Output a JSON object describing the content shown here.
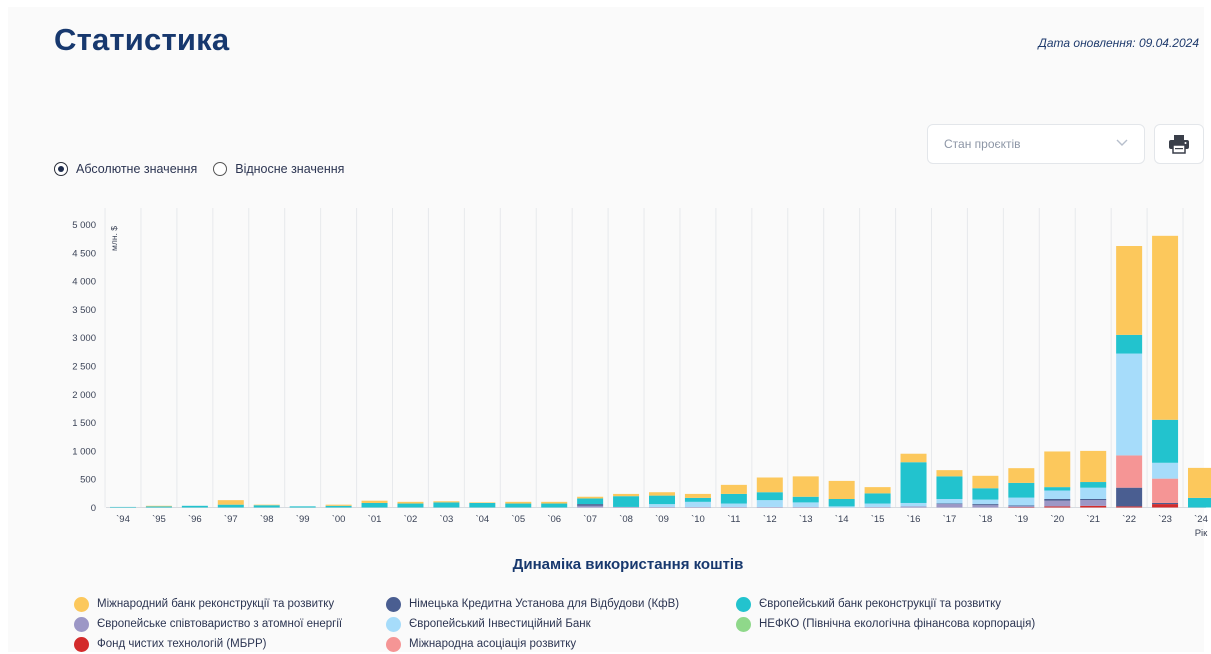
{
  "header": {
    "title": "Статистика",
    "updated": "Дата оновлення: 09.04.2024"
  },
  "view_mode": {
    "options": [
      {
        "label": "Абсолютне значення",
        "checked": true
      },
      {
        "label": "Відносне значення",
        "checked": false
      }
    ]
  },
  "filter": {
    "select_label": "Стан проєктів"
  },
  "toolbar": {
    "print_icon": "printer-icon"
  },
  "chart_data": {
    "type": "bar",
    "stacked": true,
    "title": "Динаміка використання коштів",
    "ylabel": "млн. $",
    "xlabel": "Рік",
    "ylim": [
      0,
      5000
    ],
    "yticks": [
      0,
      500,
      1000,
      1500,
      2000,
      2500,
      3000,
      3500,
      4000,
      4500,
      5000
    ],
    "ytick_labels": [
      "0",
      "500",
      "1 000",
      "1 500",
      "2 000",
      "2 500",
      "3 000",
      "3 500",
      "4 000",
      "4 500",
      "5 000"
    ],
    "grid": "vertical",
    "legend_position": "bottom",
    "categories": [
      "`94",
      "`95",
      "`96",
      "`97",
      "`98",
      "`99",
      "`00",
      "`01",
      "`02",
      "`03",
      "`04",
      "`05",
      "`06",
      "`07",
      "`08",
      "`09",
      "`10",
      "`11",
      "`12",
      "`13",
      "`14",
      "`15",
      "`16",
      "`17",
      "`18",
      "`19",
      "`20",
      "`21",
      "`22",
      "`23",
      "`24"
    ],
    "series": [
      {
        "name": "Фонд чистих технологій (МБРР)",
        "color": "#d32b2b",
        "values": [
          0,
          0,
          0,
          0,
          0,
          0,
          0,
          0,
          0,
          0,
          0,
          0,
          0,
          0,
          0,
          0,
          0,
          0,
          0,
          0,
          0,
          0,
          0,
          0,
          0,
          5,
          20,
          30,
          20,
          60,
          0
        ]
      },
      {
        "name": "Європейське співтовариство з атомної енергії",
        "color": "#9c97c6",
        "values": [
          0,
          0,
          0,
          0,
          0,
          0,
          0,
          0,
          0,
          0,
          0,
          0,
          0,
          30,
          10,
          10,
          10,
          10,
          10,
          10,
          0,
          10,
          20,
          60,
          40,
          20,
          100,
          100,
          0,
          0,
          0
        ]
      },
      {
        "name": "Німецька Кредитна Установа для Відбудови (КфВ)",
        "color": "#4a5e91",
        "values": [
          0,
          0,
          0,
          0,
          0,
          0,
          0,
          0,
          0,
          0,
          0,
          0,
          0,
          30,
          0,
          0,
          0,
          0,
          0,
          0,
          0,
          0,
          0,
          10,
          20,
          10,
          30,
          20,
          330,
          20,
          0
        ]
      },
      {
        "name": "Міжнародна асоціація розвитку",
        "color": "#f59595",
        "values": [
          0,
          0,
          0,
          0,
          0,
          0,
          0,
          0,
          0,
          0,
          0,
          0,
          0,
          0,
          0,
          0,
          0,
          0,
          0,
          0,
          0,
          0,
          0,
          0,
          0,
          0,
          0,
          0,
          570,
          430,
          0
        ]
      },
      {
        "name": "Європейський Інвестиційний Банк",
        "color": "#a6dcfa",
        "values": [
          0,
          0,
          0,
          0,
          0,
          0,
          0,
          0,
          0,
          0,
          0,
          0,
          0,
          0,
          0,
          50,
          90,
          60,
          120,
          80,
          20,
          60,
          60,
          80,
          80,
          140,
          150,
          200,
          1800,
          280,
          0
        ]
      },
      {
        "name": "НЕФКО (Північна екологічна фінансова корпорація)",
        "color": "#8fd88a",
        "values": [
          0,
          0,
          0,
          0,
          0,
          0,
          0,
          0,
          0,
          0,
          0,
          0,
          0,
          0,
          0,
          0,
          0,
          0,
          0,
          0,
          0,
          0,
          0,
          0,
          0,
          0,
          0,
          0,
          0,
          0,
          0
        ]
      },
      {
        "name": "Європейський банк реконструкції та розвитку",
        "color": "#22c3ce",
        "values": [
          10,
          20,
          30,
          50,
          40,
          20,
          30,
          80,
          70,
          90,
          80,
          70,
          70,
          100,
          190,
          150,
          70,
          170,
          140,
          100,
          130,
          180,
          720,
          400,
          200,
          260,
          60,
          100,
          330,
          760,
          170
        ]
      },
      {
        "name": "Міжнародний банк реконструкції та розвитку",
        "color": "#fcc85c",
        "values": [
          0,
          10,
          0,
          80,
          10,
          0,
          20,
          40,
          30,
          20,
          10,
          30,
          30,
          30,
          40,
          60,
          70,
          160,
          260,
          360,
          320,
          110,
          150,
          110,
          220,
          260,
          630,
          550,
          1570,
          3250,
          530
        ]
      }
    ]
  },
  "legend": {
    "rows": [
      [
        {
          "label": "Міжнародний банк реконструкції та розвитку",
          "color": "#fcc85c"
        },
        {
          "label": "Німецька Кредитна Установа для Відбудови (КфВ)",
          "color": "#4a5e91"
        },
        {
          "label": "Європейський банк реконструкції та розвитку",
          "color": "#22c3ce"
        }
      ],
      [
        {
          "label": "Європейське співтовариство з атомної енергії",
          "color": "#9c97c6"
        },
        {
          "label": "Європейський Інвестиційний Банк",
          "color": "#a6dcfa"
        },
        {
          "label": "НЕФКО (Північна екологічна фінансова корпорація)",
          "color": "#8fd88a"
        }
      ],
      [
        {
          "label": "Фонд чистих технологій (МБРР)",
          "color": "#d32b2b"
        },
        {
          "label": "Міжнародна асоціація розвитку",
          "color": "#f59595"
        }
      ]
    ]
  }
}
